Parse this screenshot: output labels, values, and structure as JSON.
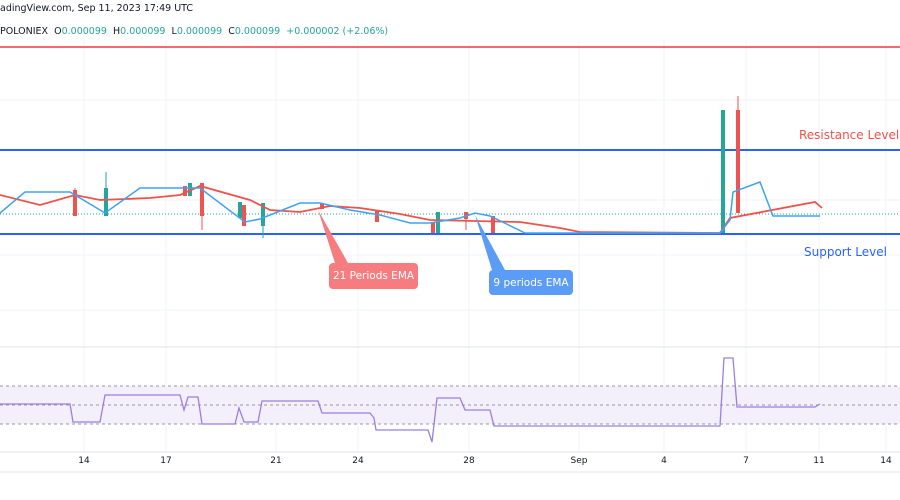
{
  "header": {
    "source": "adingView.com, Sep 11, 2023 17:49 UTC",
    "exchange": "POLONIEX",
    "open_label": "O",
    "open": "0.000099",
    "high_label": "H",
    "high": "0.000099",
    "low_label": "L",
    "low": "0.000099",
    "close_label": "C",
    "close": "0.000099",
    "change": "+0.000002 (+2.06%)"
  },
  "colors": {
    "up": "#26a69a",
    "down": "#ef5350",
    "ema21": "#f0524a",
    "ema9": "#3fa3f0",
    "levels": "#2962ff",
    "rsi": "#9b7fe0"
  },
  "chart_data": {
    "type": "candlestick",
    "x_tick_labels": [
      "14",
      "17",
      "21",
      "24",
      "28",
      "Sep",
      "4",
      "7",
      "11",
      "14"
    ],
    "annotations": {
      "resistance": "Resistance Level",
      "support": "Support Level",
      "ema21": "21 Periods EMA",
      "ema9": "9 periods EMA"
    },
    "indicators": [
      "EMA 21",
      "EMA 9",
      "RSI"
    ],
    "grid": true
  }
}
